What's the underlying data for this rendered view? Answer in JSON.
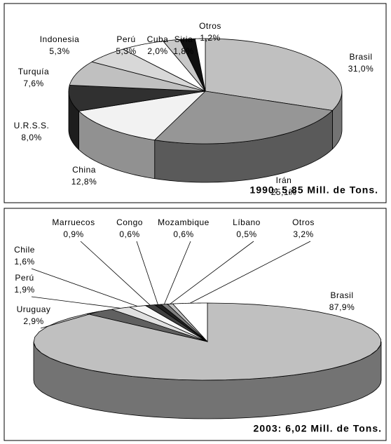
{
  "chart_data": [
    {
      "type": "pie3d",
      "title": "1990: 5,85 Mill. de Tons.",
      "categories": [
        "Brasil",
        "Irán",
        "China",
        "U.R.S.S.",
        "Turquía",
        "Indonesia",
        "Perú",
        "Cuba",
        "Siria",
        "Otros"
      ],
      "values": [
        31.0,
        25.1,
        12.8,
        8.0,
        7.6,
        5.3,
        5.3,
        2.0,
        1.8,
        1.2
      ],
      "value_labels": [
        "31,0%",
        "25,1%",
        "12,8%",
        "8,0%",
        "7,6%",
        "5,3%",
        "5,3%",
        "2,0%",
        "1,8%",
        "1,2%"
      ],
      "colors": [
        "#c0c0c0",
        "#969696",
        "#f2f2f2",
        "#303030",
        "#c0c0c0",
        "#d8d8d8",
        "#ffffff",
        "#c8c8c8",
        "#101010",
        "#ffffff"
      ]
    },
    {
      "type": "pie3d",
      "title": "2003: 6,02 Mill. de Tons.",
      "categories": [
        "Brasil",
        "Uruguay",
        "Perú",
        "Chile",
        "Marruecos",
        "Congo",
        "Mozambique",
        "Líbano",
        "Otros"
      ],
      "values": [
        87.9,
        2.9,
        1.9,
        1.6,
        0.9,
        0.6,
        0.6,
        0.5,
        3.2
      ],
      "value_labels": [
        "87,9%",
        "2,9%",
        "1,9%",
        "1,6%",
        "0,9%",
        "0,6%",
        "0,6%",
        "0,5%",
        "3,2%"
      ],
      "colors": [
        "#c0c0c0",
        "#606060",
        "#e0e0e0",
        "#f8f8f8",
        "#404040",
        "#202020",
        "#808080",
        "#c0c0c0",
        "#ffffff"
      ]
    }
  ]
}
